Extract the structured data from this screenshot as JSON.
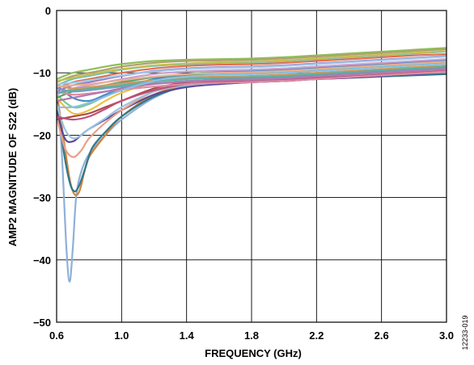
{
  "chart_data": {
    "type": "line",
    "title": "",
    "xlabel": "FREQUENCY (GHz)",
    "ylabel": "AMP2 MAGNITUDE OF S22 (dB)",
    "xlim": [
      0.6,
      3.0
    ],
    "ylim": [
      -50,
      0
    ],
    "x_ticks": [
      0.6,
      1.0,
      1.4,
      1.8,
      2.2,
      2.6,
      3.0
    ],
    "x_tick_labels": [
      "0.6",
      "1.0",
      "1.4",
      "1.8",
      "2.2",
      "2.6",
      "3.0"
    ],
    "y_ticks": [
      0,
      -10,
      -20,
      -30,
      -40,
      -50
    ],
    "y_tick_labels": [
      "0",
      "−10",
      "−20",
      "−30",
      "−40",
      "−50"
    ],
    "grid": true,
    "legend": "none",
    "figure_id": "12233-019",
    "series": [
      {
        "color": "#8fb0d8",
        "x": [
          0.6,
          0.63,
          0.66,
          0.68,
          0.7,
          0.72,
          0.75,
          0.8,
          0.9,
          1.0,
          1.2,
          1.4,
          1.6,
          1.8,
          2.0,
          2.2,
          2.4,
          2.6,
          2.8,
          3.0
        ],
        "y": [
          -13,
          -22,
          -38,
          -43.5,
          -38,
          -30,
          -26,
          -23,
          -20,
          -17.5,
          -14,
          -12,
          -11.5,
          -11.2,
          -11,
          -10.5,
          -10.3,
          -10,
          -9.7,
          -9.3
        ]
      },
      {
        "color": "#d4823a",
        "x": [
          0.6,
          0.64,
          0.68,
          0.71,
          0.74,
          0.77,
          0.8,
          0.9,
          1.0,
          1.2,
          1.4,
          1.6,
          1.8,
          2.0,
          2.2,
          2.4,
          2.6,
          2.8,
          3.0
        ],
        "y": [
          -13,
          -20,
          -27,
          -29.5,
          -29,
          -26,
          -23.5,
          -20,
          -17,
          -13.5,
          -12,
          -11.5,
          -11.3,
          -11.2,
          -10.8,
          -10.6,
          -10.3,
          -10,
          -9.8
        ]
      },
      {
        "color": "#2f7a8a",
        "x": [
          0.6,
          0.64,
          0.68,
          0.71,
          0.74,
          0.78,
          0.82,
          0.9,
          1.0,
          1.2,
          1.4,
          1.6,
          1.8,
          2.0,
          2.2,
          2.4,
          2.6,
          2.8,
          3.0
        ],
        "y": [
          -14,
          -22,
          -27.5,
          -29,
          -28,
          -25,
          -22,
          -19.5,
          -17,
          -13.8,
          -12.2,
          -11.8,
          -11.5,
          -11.3,
          -11,
          -10.8,
          -10.6,
          -10.4,
          -10.2
        ]
      },
      {
        "color": "#5a4a9a",
        "x": [
          0.6,
          0.65,
          0.7,
          0.75,
          0.8,
          0.9,
          1.0,
          1.2,
          1.4,
          1.6,
          1.8,
          2.0,
          2.2,
          2.4,
          2.6,
          2.8,
          3.0
        ],
        "y": [
          -16,
          -20.5,
          -21,
          -20,
          -19,
          -17.5,
          -16,
          -13.5,
          -12.3,
          -11.8,
          -11.5,
          -11.3,
          -11,
          -10.8,
          -10.5,
          -10.2,
          -10
        ]
      },
      {
        "color": "#e8a08a",
        "x": [
          0.6,
          0.65,
          0.7,
          0.75,
          0.8,
          0.9,
          1.0,
          1.2,
          1.4,
          1.6,
          1.8,
          2.0,
          2.2,
          2.4,
          2.6,
          2.8,
          3.0
        ],
        "y": [
          -17,
          -22,
          -23.5,
          -22.5,
          -20.5,
          -18,
          -16,
          -13,
          -11.8,
          -11.3,
          -11,
          -10.8,
          -10.5,
          -10.3,
          -10,
          -9.8,
          -9.5
        ]
      },
      {
        "color": "#9bc2e0",
        "x": [
          0.6,
          0.65,
          0.7,
          0.75,
          0.8,
          0.9,
          1.0,
          1.2,
          1.4,
          1.6,
          1.8,
          2.0,
          2.2,
          2.4,
          2.6,
          2.8,
          3.0
        ],
        "y": [
          -15,
          -19,
          -20.5,
          -20,
          -19,
          -17.3,
          -15.5,
          -13,
          -12,
          -11.6,
          -11.3,
          -11.1,
          -10.8,
          -10.6,
          -10.4,
          -10.1,
          -9.9
        ]
      },
      {
        "color": "#a84a4a",
        "x": [
          0.6,
          0.7,
          0.8,
          0.9,
          1.0,
          1.2,
          1.4,
          1.6,
          1.8,
          2.0,
          2.2,
          2.4,
          2.6,
          2.8,
          3.0
        ],
        "y": [
          -17.5,
          -17,
          -16.5,
          -15.5,
          -14.5,
          -12.5,
          -11.5,
          -11,
          -10.8,
          -10.6,
          -10.3,
          -10,
          -9.8,
          -9.5,
          -9.2
        ]
      },
      {
        "color": "#c05078",
        "x": [
          0.6,
          0.7,
          0.8,
          0.9,
          1.0,
          1.2,
          1.4,
          1.6,
          1.8,
          2.0,
          2.2,
          2.4,
          2.6,
          2.8,
          3.0
        ],
        "y": [
          -17,
          -17.5,
          -17,
          -15.8,
          -14.5,
          -12.8,
          -11.8,
          -11.4,
          -11.2,
          -11,
          -10.8,
          -10.6,
          -10.3,
          -10,
          -9.7
        ]
      },
      {
        "color": "#f0c040",
        "x": [
          0.6,
          0.7,
          0.8,
          0.9,
          1.0,
          1.2,
          1.4,
          1.6,
          1.8,
          2.0,
          2.2,
          2.4,
          2.6,
          2.8,
          3.0
        ],
        "y": [
          -14,
          -16.5,
          -16,
          -14.5,
          -13.2,
          -11.5,
          -10.5,
          -10,
          -9.8,
          -9.6,
          -9.3,
          -9,
          -8.7,
          -8.4,
          -8.1
        ]
      },
      {
        "color": "#7ec88a",
        "x": [
          0.6,
          0.7,
          0.8,
          0.9,
          1.0,
          1.2,
          1.4,
          1.6,
          1.8,
          2.0,
          2.2,
          2.4,
          2.6,
          2.8,
          3.0
        ],
        "y": [
          -13.5,
          -15.5,
          -15,
          -13.7,
          -12.5,
          -11,
          -10.2,
          -9.8,
          -9.5,
          -9.3,
          -9,
          -8.8,
          -8.5,
          -8.2,
          -8
        ]
      },
      {
        "color": "#4a8bc8",
        "x": [
          0.6,
          0.7,
          0.8,
          0.9,
          1.0,
          1.2,
          1.4,
          1.6,
          1.8,
          2.0,
          2.2,
          2.4,
          2.6,
          2.8,
          3.0
        ],
        "y": [
          -12,
          -14,
          -14.5,
          -13.5,
          -12.5,
          -11,
          -10.3,
          -9.9,
          -9.7,
          -9.5,
          -9.2,
          -8.9,
          -8.6,
          -8.3,
          -8
        ]
      },
      {
        "color": "#8fbf5a",
        "x": [
          0.6,
          0.7,
          0.8,
          0.9,
          1.0,
          1.2,
          1.4,
          1.6,
          1.8,
          2.0,
          2.2,
          2.4,
          2.6,
          2.8,
          3.0
        ],
        "y": [
          -11,
          -10,
          -9.5,
          -9,
          -8.6,
          -8.1,
          -7.9,
          -7.8,
          -7.7,
          -7.5,
          -7.2,
          -6.9,
          -6.6,
          -6.3,
          -6
        ]
      },
      {
        "color": "#b0a070",
        "x": [
          0.6,
          0.7,
          0.8,
          0.9,
          1.0,
          1.2,
          1.4,
          1.6,
          1.8,
          2.0,
          2.2,
          2.4,
          2.6,
          2.8,
          3.0
        ],
        "y": [
          -11.5,
          -10.5,
          -10,
          -9.5,
          -9,
          -8.4,
          -8.1,
          -8,
          -7.9,
          -7.7,
          -7.4,
          -7.1,
          -6.8,
          -6.5,
          -6.2
        ]
      },
      {
        "color": "#6fc0c0",
        "x": [
          0.6,
          0.7,
          0.8,
          0.9,
          1.0,
          1.2,
          1.4,
          1.6,
          1.8,
          2.0,
          2.2,
          2.4,
          2.6,
          2.8,
          3.0
        ],
        "y": [
          -12,
          -11,
          -10.5,
          -10,
          -9.5,
          -8.9,
          -8.6,
          -8.4,
          -8.3,
          -8.1,
          -7.8,
          -7.5,
          -7.2,
          -6.9,
          -6.6
        ]
      },
      {
        "color": "#e07050",
        "x": [
          0.6,
          0.7,
          0.8,
          0.9,
          1.0,
          1.2,
          1.4,
          1.6,
          1.8,
          2.0,
          2.2,
          2.4,
          2.6,
          2.8,
          3.0
        ],
        "y": [
          -12.5,
          -11.5,
          -11,
          -10.5,
          -10,
          -9.3,
          -8.9,
          -8.7,
          -8.6,
          -8.4,
          -8.1,
          -7.8,
          -7.5,
          -7.2,
          -7
        ]
      },
      {
        "color": "#9a7ac0",
        "x": [
          0.6,
          0.7,
          0.8,
          0.9,
          1.0,
          1.2,
          1.4,
          1.6,
          1.8,
          2.0,
          2.2,
          2.4,
          2.6,
          2.8,
          3.0
        ],
        "y": [
          -13,
          -12,
          -11.5,
          -11,
          -10.5,
          -9.7,
          -9.3,
          -9.1,
          -9,
          -8.8,
          -8.5,
          -8.2,
          -7.9,
          -7.6,
          -7.3
        ]
      },
      {
        "color": "#c8a0d0",
        "x": [
          0.6,
          0.7,
          0.8,
          0.9,
          1.0,
          1.2,
          1.4,
          1.6,
          1.8,
          2.0,
          2.2,
          2.4,
          2.6,
          2.8,
          3.0
        ],
        "y": [
          -13.5,
          -12.5,
          -12,
          -11.5,
          -11,
          -10.2,
          -9.8,
          -9.6,
          -9.5,
          -9.3,
          -9,
          -8.7,
          -8.4,
          -8.1,
          -7.8
        ]
      },
      {
        "color": "#5aa06a",
        "x": [
          0.6,
          0.7,
          0.8,
          0.9,
          1.0,
          1.2,
          1.4,
          1.6,
          1.8,
          2.0,
          2.2,
          2.4,
          2.6,
          2.8,
          3.0
        ],
        "y": [
          -14,
          -13,
          -12.5,
          -12,
          -11.5,
          -10.7,
          -10.3,
          -10.1,
          -10,
          -9.8,
          -9.5,
          -9.2,
          -8.9,
          -8.6,
          -8.3
        ]
      },
      {
        "color": "#d09a60",
        "x": [
          0.6,
          0.7,
          0.8,
          0.9,
          1.0,
          1.2,
          1.4,
          1.6,
          1.8,
          2.0,
          2.2,
          2.4,
          2.6,
          2.8,
          3.0
        ],
        "y": [
          -12,
          -12.5,
          -12.3,
          -12,
          -11.7,
          -11.2,
          -10.8,
          -10.6,
          -10.5,
          -10.3,
          -10,
          -9.7,
          -9.4,
          -9.1,
          -8.8
        ]
      },
      {
        "color": "#7a9ac8",
        "x": [
          0.6,
          0.7,
          0.8,
          0.9,
          1.0,
          1.2,
          1.4,
          1.6,
          1.8,
          2.0,
          2.2,
          2.4,
          2.6,
          2.8,
          3.0
        ],
        "y": [
          -12.5,
          -13,
          -12.8,
          -12.5,
          -12.2,
          -11.7,
          -11.3,
          -11.1,
          -11,
          -10.8,
          -10.5,
          -10.2,
          -9.9,
          -9.6,
          -9.3
        ]
      },
      {
        "color": "#e08aa0",
        "x": [
          0.6,
          0.7,
          0.8,
          0.9,
          1.0,
          1.2,
          1.4,
          1.6,
          1.8,
          2.0,
          2.2,
          2.4,
          2.6,
          2.8,
          3.0
        ],
        "y": [
          -13,
          -13.5,
          -13.3,
          -13,
          -12.7,
          -12.2,
          -11.8,
          -11.6,
          -11.5,
          -11.3,
          -11,
          -10.7,
          -10.4,
          -10.1,
          -9.8
        ]
      },
      {
        "color": "#a0c8e8",
        "x": [
          0.6,
          0.7,
          0.8,
          0.9,
          1.0,
          1.2,
          1.4,
          1.6,
          1.8,
          2.0,
          2.2,
          2.4,
          2.6,
          2.8,
          3.0
        ],
        "y": [
          -11.8,
          -11.6,
          -11.2,
          -10.8,
          -10.4,
          -9.8,
          -9.4,
          -9.2,
          -9.1,
          -8.9,
          -8.6,
          -8.3,
          -8,
          -7.7,
          -7.4
        ]
      },
      {
        "color": "#c0c050",
        "x": [
          0.6,
          0.7,
          0.8,
          0.9,
          1.0,
          1.2,
          1.4,
          1.6,
          1.8,
          2.0,
          2.2,
          2.4,
          2.6,
          2.8,
          3.0
        ],
        "y": [
          -11.3,
          -10.8,
          -10.3,
          -9.8,
          -9.4,
          -8.8,
          -8.5,
          -8.3,
          -8.2,
          -8,
          -7.7,
          -7.4,
          -7.1,
          -6.8,
          -6.5
        ]
      },
      {
        "color": "#e8b090",
        "x": [
          0.6,
          0.7,
          0.8,
          0.9,
          1.0,
          1.2,
          1.4,
          1.6,
          1.8,
          2.0,
          2.2,
          2.4,
          2.6,
          2.8,
          3.0
        ],
        "y": [
          -12.2,
          -12,
          -11.8,
          -11.5,
          -11.2,
          -10.6,
          -10.2,
          -10,
          -9.9,
          -9.7,
          -9.4,
          -9.1,
          -8.8,
          -8.5,
          -8.2
        ]
      },
      {
        "color": "#60b0a0",
        "x": [
          0.6,
          0.7,
          0.8,
          0.9,
          1.0,
          1.2,
          1.4,
          1.6,
          1.8,
          2.0,
          2.2,
          2.4,
          2.6,
          2.8,
          3.0
        ],
        "y": [
          -13.2,
          -12.8,
          -12.6,
          -12.3,
          -12,
          -11.4,
          -11,
          -10.8,
          -10.7,
          -10.5,
          -10.2,
          -9.9,
          -9.6,
          -9.3,
          -9
        ]
      },
      {
        "color": "#b07ab0",
        "x": [
          0.6,
          0.7,
          0.8,
          0.9,
          1.0,
          1.2,
          1.4,
          1.6,
          1.8,
          2.0,
          2.2,
          2.4,
          2.6,
          2.8,
          3.0
        ],
        "y": [
          -14.5,
          -14,
          -13.5,
          -13,
          -12.5,
          -11.8,
          -11.4,
          -11.2,
          -11.1,
          -10.9,
          -10.6,
          -10.3,
          -10,
          -9.7,
          -9.4
        ]
      },
      {
        "color": "#8ac0e0",
        "x": [
          0.6,
          0.7,
          0.8,
          0.9,
          1.0,
          1.2,
          1.4,
          1.6,
          1.8,
          2.0,
          2.2,
          2.4,
          2.6,
          2.8,
          3.0
        ],
        "y": [
          -15.5,
          -15.5,
          -14.8,
          -13.8,
          -12.8,
          -11.3,
          -10.6,
          -10.3,
          -10.2,
          -10,
          -9.7,
          -9.4,
          -9.1,
          -8.8,
          -8.5
        ]
      }
    ]
  }
}
